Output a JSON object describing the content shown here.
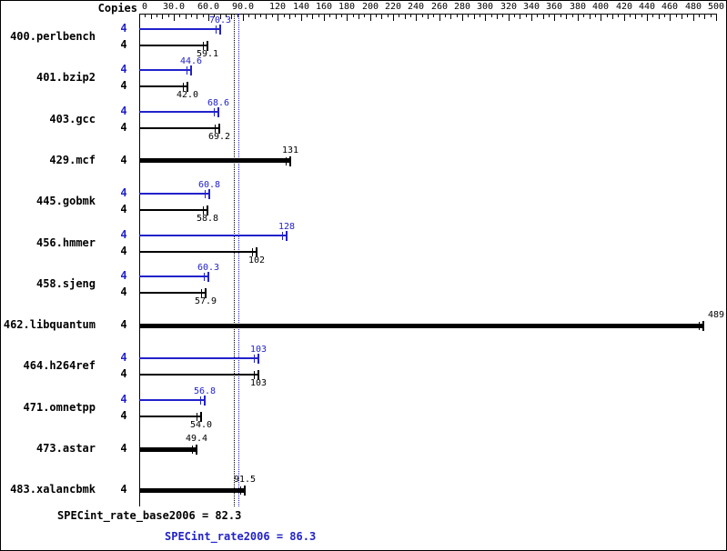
{
  "chart_data": {
    "type": "bar",
    "orientation": "horizontal",
    "copies_header": "Copies",
    "series_colors": {
      "peak": "#2222cc",
      "base": "#000000"
    },
    "axis": {
      "min": 0,
      "max": 500,
      "minor_tick_step": 5,
      "medium_tick_step": 10,
      "tick_labels": [
        {
          "value": 0,
          "label": "0"
        },
        {
          "value": 30,
          "label": "30.0"
        },
        {
          "value": 60,
          "label": "60.0"
        },
        {
          "value": 90,
          "label": "90.0"
        },
        {
          "value": 120,
          "label": "120"
        },
        {
          "value": 140,
          "label": "140"
        },
        {
          "value": 160,
          "label": "160"
        },
        {
          "value": 180,
          "label": "180"
        },
        {
          "value": 200,
          "label": "200"
        },
        {
          "value": 220,
          "label": "220"
        },
        {
          "value": 240,
          "label": "240"
        },
        {
          "value": 260,
          "label": "260"
        },
        {
          "value": 280,
          "label": "280"
        },
        {
          "value": 300,
          "label": "300"
        },
        {
          "value": 320,
          "label": "320"
        },
        {
          "value": 340,
          "label": "340"
        },
        {
          "value": 360,
          "label": "360"
        },
        {
          "value": 380,
          "label": "380"
        },
        {
          "value": 400,
          "label": "400"
        },
        {
          "value": 420,
          "label": "420"
        },
        {
          "value": 440,
          "label": "440"
        },
        {
          "value": 460,
          "label": "460"
        },
        {
          "value": 480,
          "label": "480"
        },
        {
          "value": 500,
          "label": "500"
        }
      ]
    },
    "benchmarks": [
      {
        "name": "400.perlbench",
        "copies": "4",
        "peak": 70.3,
        "peak_label": "70.3",
        "base": 59.1,
        "base_label": "59.1"
      },
      {
        "name": "401.bzip2",
        "copies": "4",
        "peak": 44.6,
        "peak_label": "44.6",
        "base": 42.0,
        "base_label": "42.0"
      },
      {
        "name": "403.gcc",
        "copies": "4",
        "peak": 68.6,
        "peak_label": "68.6",
        "base": 69.2,
        "base_label": "69.2"
      },
      {
        "name": "429.mcf",
        "copies": "4",
        "single": true,
        "base": 131,
        "base_label": "131"
      },
      {
        "name": "445.gobmk",
        "copies": "4",
        "peak": 60.8,
        "peak_label": "60.8",
        "base": 58.8,
        "base_label": "58.8"
      },
      {
        "name": "456.hmmer",
        "copies": "4",
        "peak": 128,
        "peak_label": "128",
        "base": 102,
        "base_label": "102"
      },
      {
        "name": "458.sjeng",
        "copies": "4",
        "peak": 60.3,
        "peak_label": "60.3",
        "base": 57.9,
        "base_label": "57.9"
      },
      {
        "name": "462.libquantum",
        "copies": "4",
        "single": true,
        "base": 489,
        "base_label": "489"
      },
      {
        "name": "464.h264ref",
        "copies": "4",
        "peak": 103,
        "peak_label": "103",
        "base": 103,
        "base_label": "103"
      },
      {
        "name": "471.omnetpp",
        "copies": "4",
        "peak": 56.8,
        "peak_label": "56.8",
        "base": 54.0,
        "base_label": "54.0"
      },
      {
        "name": "473.astar",
        "copies": "4",
        "single": true,
        "base": 49.4,
        "base_label": "49.4"
      },
      {
        "name": "483.xalancbmk",
        "copies": "4",
        "single": true,
        "base": 91.5,
        "base_label": "91.5"
      }
    ],
    "reference_lines": [
      {
        "value": 82.3,
        "label": "SPECint_rate_base2006 = 82.3",
        "color": "#000000",
        "style": "dotted"
      },
      {
        "value": 86.3,
        "label": "SPECint_rate2006 = 86.3",
        "color": "#2222cc",
        "style": "dotted"
      }
    ]
  }
}
